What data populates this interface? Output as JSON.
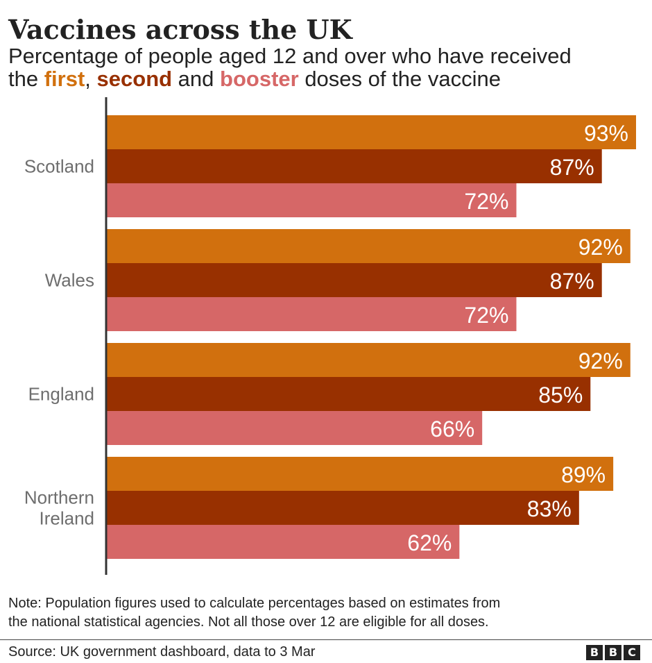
{
  "title": "Vaccines across the UK",
  "subtitle": {
    "line1": "Percentage of people aged 12 and over who have received",
    "pre": "the ",
    "first": "first",
    "comma": ", ",
    "second": "second",
    "and": " and ",
    "booster": "booster",
    "post": " doses of the vaccine"
  },
  "colors": {
    "first": "#d1700e",
    "second": "#983000",
    "booster": "#d66767",
    "axis": "#333333",
    "category_label": "#6e6e6e"
  },
  "chart_data": {
    "type": "bar",
    "orientation": "horizontal",
    "categories": [
      "Scotland",
      "Wales",
      "England",
      "Northern Ireland"
    ],
    "series": [
      {
        "name": "first",
        "values": [
          93,
          92,
          92,
          89
        ]
      },
      {
        "name": "second",
        "values": [
          87,
          87,
          85,
          83
        ]
      },
      {
        "name": "booster",
        "values": [
          72,
          72,
          66,
          62
        ]
      }
    ],
    "value_suffix": "%",
    "xlim": [
      0,
      93
    ],
    "grid": false,
    "legend": "in subtitle"
  },
  "note": {
    "line1": "Note: Population figures used to calculate percentages based on estimates from",
    "line2": "the national statistical agencies. Not all those over 12 are eligible for all doses."
  },
  "source": "Source: UK government dashboard, data to 3 Mar",
  "logo": [
    "B",
    "B",
    "C"
  ]
}
